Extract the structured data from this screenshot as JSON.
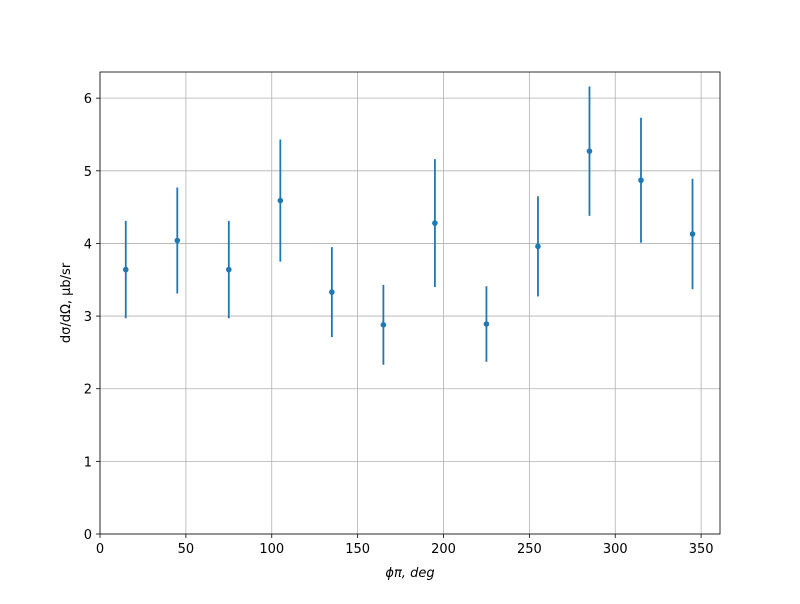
{
  "chart_data": {
    "type": "errorbar",
    "x_label": "ϕπ, deg",
    "y_label": "dσ/dΩ, μb/sr",
    "xlim": [
      0,
      361
    ],
    "ylim": [
      0,
      6.36
    ],
    "xticks": [
      0,
      50,
      100,
      150,
      200,
      250,
      300,
      350
    ],
    "yticks": [
      0,
      1,
      2,
      3,
      4,
      5,
      6
    ],
    "grid": true,
    "series": [
      {
        "color": "#1f77b4",
        "x": [
          15,
          45,
          75,
          105,
          135,
          165,
          195,
          225,
          255,
          285,
          315,
          345
        ],
        "values": [
          3.64,
          4.04,
          3.64,
          4.59,
          3.33,
          2.88,
          4.28,
          2.89,
          3.96,
          5.27,
          4.87,
          4.13
        ],
        "errors": [
          0.67,
          0.73,
          0.67,
          0.84,
          0.62,
          0.55,
          0.88,
          0.52,
          0.69,
          0.89,
          0.86,
          0.76
        ]
      }
    ]
  }
}
